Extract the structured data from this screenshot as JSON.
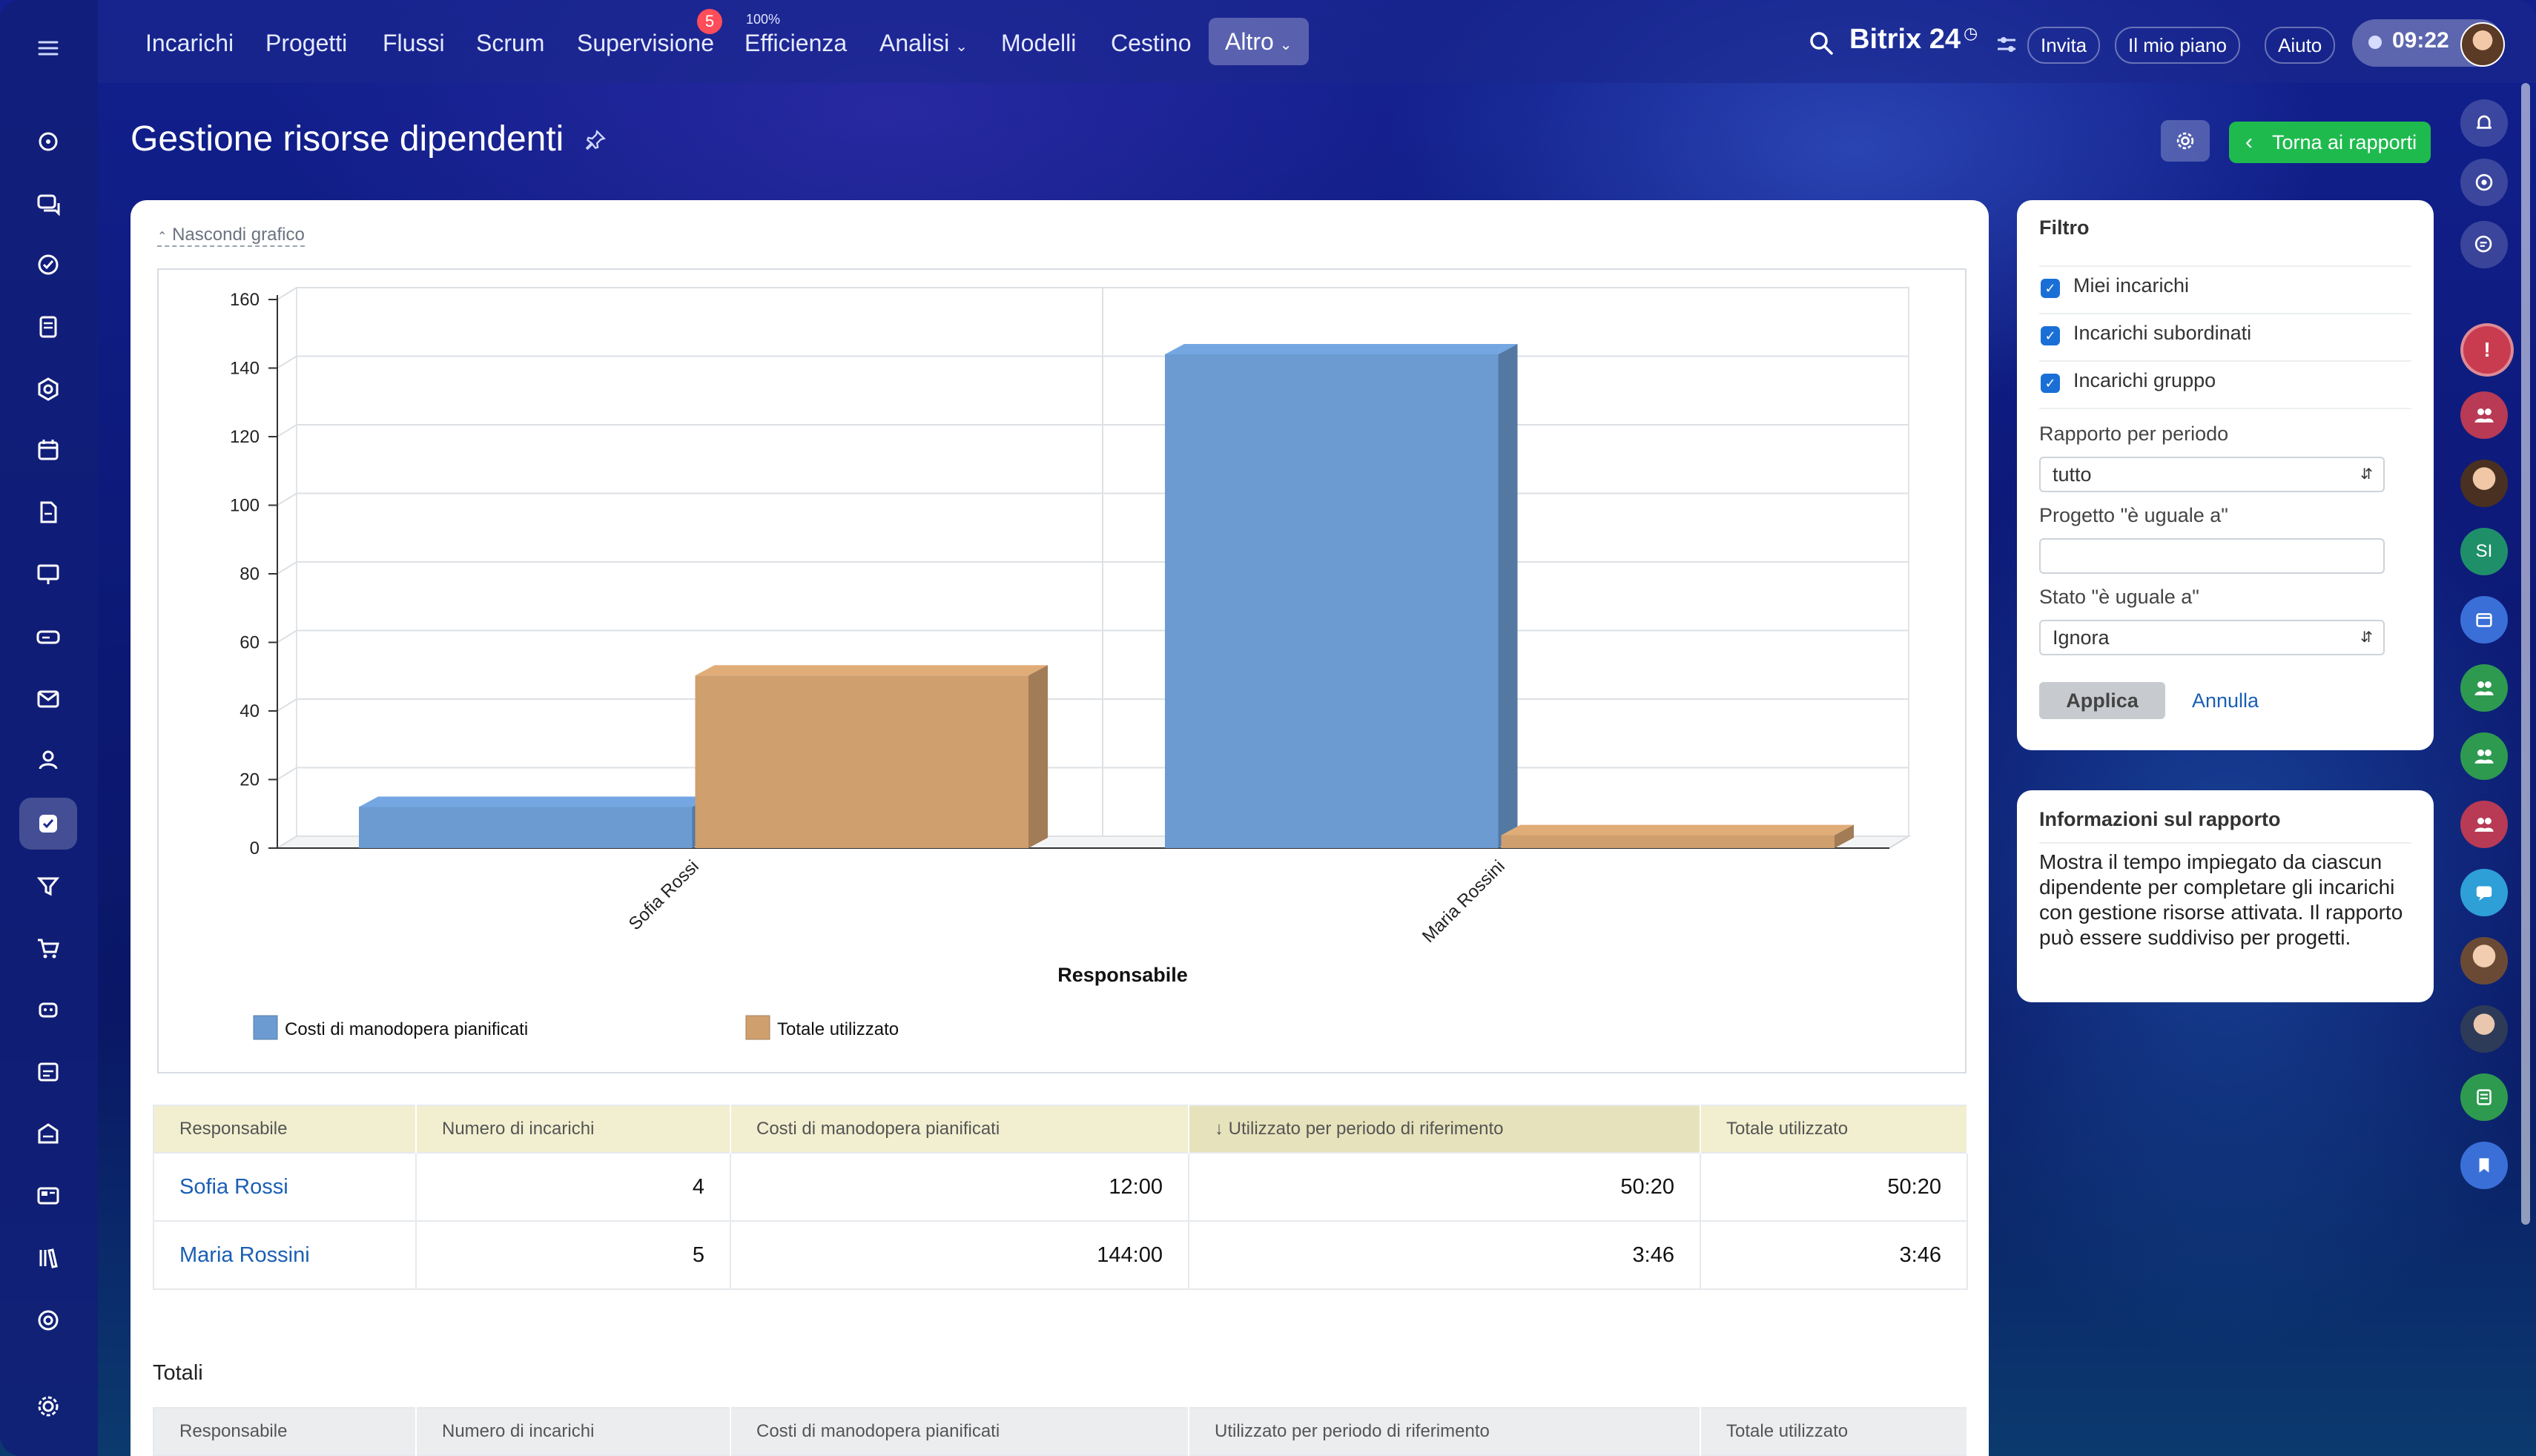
{
  "nav": {
    "items": [
      "Incarichi",
      "Progetti",
      "Flussi",
      "Scrum",
      "Supervisione",
      "Efficienza",
      "Analisi",
      "Modelli",
      "Cestino",
      "Altro"
    ],
    "supervisione_badge": "5",
    "efficienza_percent": "100%",
    "brand": "Bitrix 24",
    "invite": "Invita",
    "plan": "Il mio piano",
    "help": "Aiuto",
    "clock": "09:22"
  },
  "page": {
    "title": "Gestione risorse dipendenti",
    "back_button": "Torna ai rapporti",
    "hide_chart": "Nascondi grafico"
  },
  "chart_data": {
    "type": "bar",
    "categories": [
      "Sofia Rossi",
      "Maria Rossini"
    ],
    "series": [
      {
        "name": "Costi di manodopera pianificati",
        "values": [
          12,
          144
        ],
        "color": "#6b9bd1"
      },
      {
        "name": "Totale utilizzato",
        "values": [
          50.33,
          3.77
        ],
        "color": "#cf9f6e"
      }
    ],
    "xlabel": "Responsabile",
    "ylim": [
      0,
      160
    ],
    "yticks": [
      0,
      20,
      40,
      60,
      80,
      100,
      120,
      140,
      160
    ],
    "grid": true,
    "legend_placement": "bottom-left"
  },
  "table": {
    "headers": [
      "Responsabile",
      "Numero di incarichi",
      "Costi di manodopera pianificati",
      "↓ Utilizzato per periodo di riferimento",
      "Totale utilizzato"
    ],
    "rows": [
      [
        "Sofia Rossi",
        "4",
        "12:00",
        "50:20",
        "50:20"
      ],
      [
        "Maria Rossini",
        "5",
        "144:00",
        "3:46",
        "3:46"
      ]
    ]
  },
  "totals": {
    "label": "Totali",
    "headers": [
      "Responsabile",
      "Numero di incarichi",
      "Costi di manodopera pianificati",
      "Utilizzato per periodo di riferimento",
      "Totale utilizzato"
    ]
  },
  "filter": {
    "title": "Filtro",
    "checks": [
      "Miei incarichi",
      "Incarichi subordinati",
      "Incarichi gruppo"
    ],
    "period_label": "Rapporto per periodo",
    "period_value": "tutto",
    "project_label": "Progetto \"è uguale a\"",
    "project_value": "",
    "status_label": "Stato \"è uguale a\"",
    "status_value": "Ignora",
    "apply": "Applica",
    "cancel": "Annulla"
  },
  "info": {
    "title": "Informazioni sul rapporto",
    "text": "Mostra il tempo impiegato da ciascun dipendente per completare gli incarichi con gestione risorse attivata. Il rapporto può essere suddiviso per progetti."
  },
  "right_avatar_initials": "SI"
}
